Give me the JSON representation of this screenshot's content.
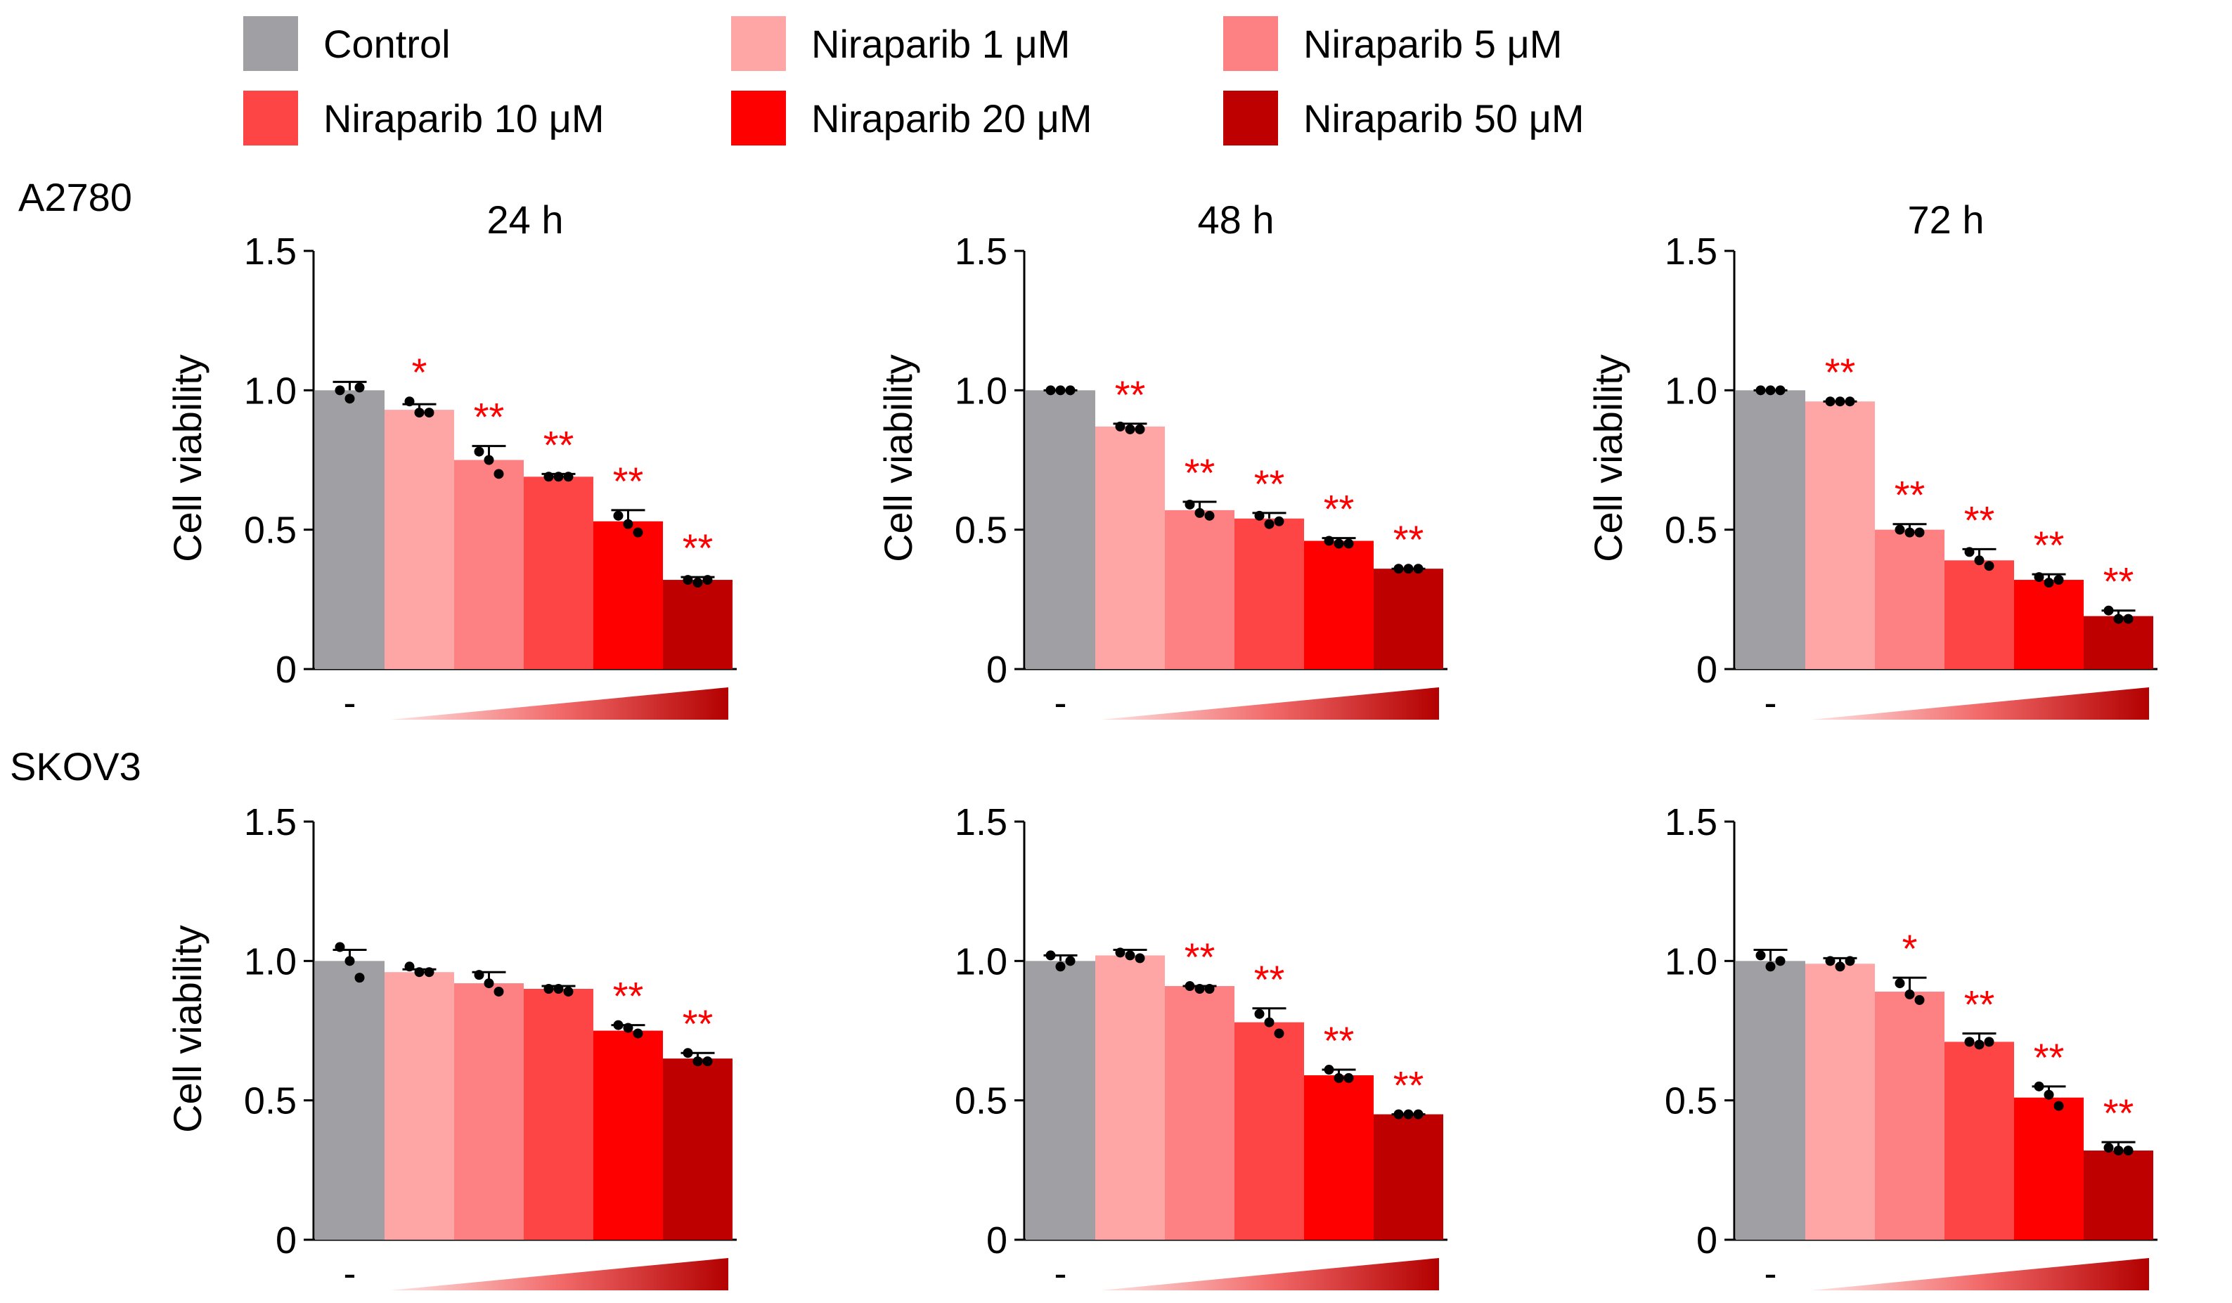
{
  "legend": [
    {
      "label": "Control",
      "color": "#a09fa4"
    },
    {
      "label": "Niraparib 1 μM",
      "color": "#fea6a6"
    },
    {
      "label": "Niraparib 5 μM",
      "color": "#fd8082"
    },
    {
      "label": "Niraparib 10 μM",
      "color": "#fe4545"
    },
    {
      "label": "Niraparib 20 μM",
      "color": "#fe0000"
    },
    {
      "label": "Niraparib 50 μM",
      "color": "#bf0000"
    }
  ],
  "rows": [
    {
      "label": "A2780"
    },
    {
      "label": "SKOV3"
    }
  ],
  "chart_data": [
    {
      "type": "bar",
      "cell_line": "A2780",
      "title": "24 h",
      "ylabel": "Cell viability",
      "ylim": [
        0,
        1.5
      ],
      "yticks": [
        "0",
        "0.5",
        "1.0",
        "1.5"
      ],
      "xlabel": "-",
      "categories": [
        "Control",
        "Niraparib 1 μM",
        "Niraparib 5 μM",
        "Niraparib 10 μM",
        "Niraparib 20 μM",
        "Niraparib 50 μM"
      ],
      "values": [
        1.0,
        0.93,
        0.75,
        0.69,
        0.53,
        0.32
      ],
      "errors": [
        0.03,
        0.02,
        0.05,
        0.01,
        0.04,
        0.01
      ],
      "points": [
        [
          1.0,
          0.97,
          1.01
        ],
        [
          0.96,
          0.92,
          0.92
        ],
        [
          0.78,
          0.75,
          0.7
        ],
        [
          0.69,
          0.69,
          0.69
        ],
        [
          0.55,
          0.52,
          0.49
        ],
        [
          0.32,
          0.31,
          0.32
        ]
      ],
      "significance": [
        "",
        "*",
        "**",
        "**",
        "**",
        "**"
      ]
    },
    {
      "type": "bar",
      "cell_line": "A2780",
      "title": "48 h",
      "ylabel": "Cell viability",
      "ylim": [
        0,
        1.5
      ],
      "yticks": [
        "0",
        "0.5",
        "1.0",
        "1.5"
      ],
      "xlabel": "-",
      "categories": [
        "Control",
        "Niraparib 1 μM",
        "Niraparib 5 μM",
        "Niraparib 10 μM",
        "Niraparib 20 μM",
        "Niraparib 50 μM"
      ],
      "values": [
        1.0,
        0.87,
        0.57,
        0.54,
        0.46,
        0.36
      ],
      "errors": [
        0.0,
        0.01,
        0.03,
        0.02,
        0.01,
        0.0
      ],
      "points": [
        [
          1.0,
          1.0,
          1.0
        ],
        [
          0.87,
          0.86,
          0.86
        ],
        [
          0.59,
          0.56,
          0.55
        ],
        [
          0.55,
          0.52,
          0.53
        ],
        [
          0.46,
          0.45,
          0.45
        ],
        [
          0.36,
          0.36,
          0.36
        ]
      ],
      "significance": [
        "",
        "**",
        "**",
        "**",
        "**",
        "**"
      ]
    },
    {
      "type": "bar",
      "cell_line": "A2780",
      "title": "72 h",
      "ylabel": "Cell viability",
      "ylim": [
        0,
        1.5
      ],
      "yticks": [
        "0",
        "0.5",
        "1.0",
        "1.5"
      ],
      "xlabel": "-",
      "categories": [
        "Control",
        "Niraparib 1 μM",
        "Niraparib 5 μM",
        "Niraparib 10 μM",
        "Niraparib 20 μM",
        "Niraparib 50 μM"
      ],
      "values": [
        1.0,
        0.96,
        0.5,
        0.39,
        0.32,
        0.19
      ],
      "errors": [
        0.0,
        0.0,
        0.02,
        0.04,
        0.02,
        0.02
      ],
      "points": [
        [
          1.0,
          1.0,
          1.0
        ],
        [
          0.96,
          0.96,
          0.96
        ],
        [
          0.5,
          0.49,
          0.49
        ],
        [
          0.42,
          0.39,
          0.37
        ],
        [
          0.33,
          0.31,
          0.32
        ],
        [
          0.21,
          0.18,
          0.18
        ]
      ],
      "significance": [
        "",
        "**",
        "**",
        "**",
        "**",
        "**"
      ]
    },
    {
      "type": "bar",
      "cell_line": "SKOV3",
      "title": "",
      "ylabel": "Cell viability",
      "ylim": [
        0,
        1.5
      ],
      "yticks": [
        "0",
        "0.5",
        "1.0",
        "1.5"
      ],
      "xlabel": "-",
      "categories": [
        "Control",
        "Niraparib 1 μM",
        "Niraparib 5 μM",
        "Niraparib 10 μM",
        "Niraparib 20 μM",
        "Niraparib 50 μM"
      ],
      "values": [
        1.0,
        0.96,
        0.92,
        0.9,
        0.75,
        0.65
      ],
      "errors": [
        0.04,
        0.01,
        0.04,
        0.01,
        0.02,
        0.02
      ],
      "points": [
        [
          1.05,
          1.0,
          0.94
        ],
        [
          0.98,
          0.96,
          0.96
        ],
        [
          0.95,
          0.92,
          0.89
        ],
        [
          0.9,
          0.9,
          0.89
        ],
        [
          0.77,
          0.76,
          0.74
        ],
        [
          0.67,
          0.64,
          0.64
        ]
      ],
      "significance": [
        "",
        "",
        "",
        "",
        "**",
        "**"
      ]
    },
    {
      "type": "bar",
      "cell_line": "SKOV3",
      "title": "",
      "ylabel": "",
      "ylim": [
        0,
        1.5
      ],
      "yticks": [
        "0",
        "0.5",
        "1.0",
        "1.5"
      ],
      "xlabel": "-",
      "categories": [
        "Control",
        "Niraparib 1 μM",
        "Niraparib 5 μM",
        "Niraparib 10 μM",
        "Niraparib 20 μM",
        "Niraparib 50 μM"
      ],
      "values": [
        1.0,
        1.02,
        0.91,
        0.78,
        0.59,
        0.45
      ],
      "errors": [
        0.02,
        0.02,
        0.0,
        0.05,
        0.02,
        0.0
      ],
      "points": [
        [
          1.02,
          0.98,
          1.0
        ],
        [
          1.03,
          1.02,
          1.01
        ],
        [
          0.91,
          0.9,
          0.9
        ],
        [
          0.81,
          0.78,
          0.74
        ],
        [
          0.61,
          0.58,
          0.58
        ],
        [
          0.45,
          0.45,
          0.45
        ]
      ],
      "significance": [
        "",
        "",
        "**",
        "**",
        "**",
        "**"
      ]
    },
    {
      "type": "bar",
      "cell_line": "SKOV3",
      "title": "",
      "ylabel": "",
      "ylim": [
        0,
        1.5
      ],
      "yticks": [
        "0",
        "0.5",
        "1.0",
        "1.5"
      ],
      "xlabel": "-",
      "categories": [
        "Control",
        "Niraparib 1 μM",
        "Niraparib 5 μM",
        "Niraparib 10 μM",
        "Niraparib 20 μM",
        "Niraparib 50 μM"
      ],
      "values": [
        1.0,
        0.99,
        0.89,
        0.71,
        0.51,
        0.32
      ],
      "errors": [
        0.04,
        0.02,
        0.05,
        0.03,
        0.04,
        0.03
      ],
      "points": [
        [
          1.02,
          0.98,
          1.0
        ],
        [
          1.0,
          0.98,
          1.0
        ],
        [
          0.92,
          0.88,
          0.86
        ],
        [
          0.71,
          0.7,
          0.71
        ],
        [
          0.55,
          0.52,
          0.48
        ],
        [
          0.33,
          0.32,
          0.32
        ]
      ],
      "significance": [
        "",
        "",
        "*",
        "**",
        "**",
        "**"
      ]
    }
  ]
}
